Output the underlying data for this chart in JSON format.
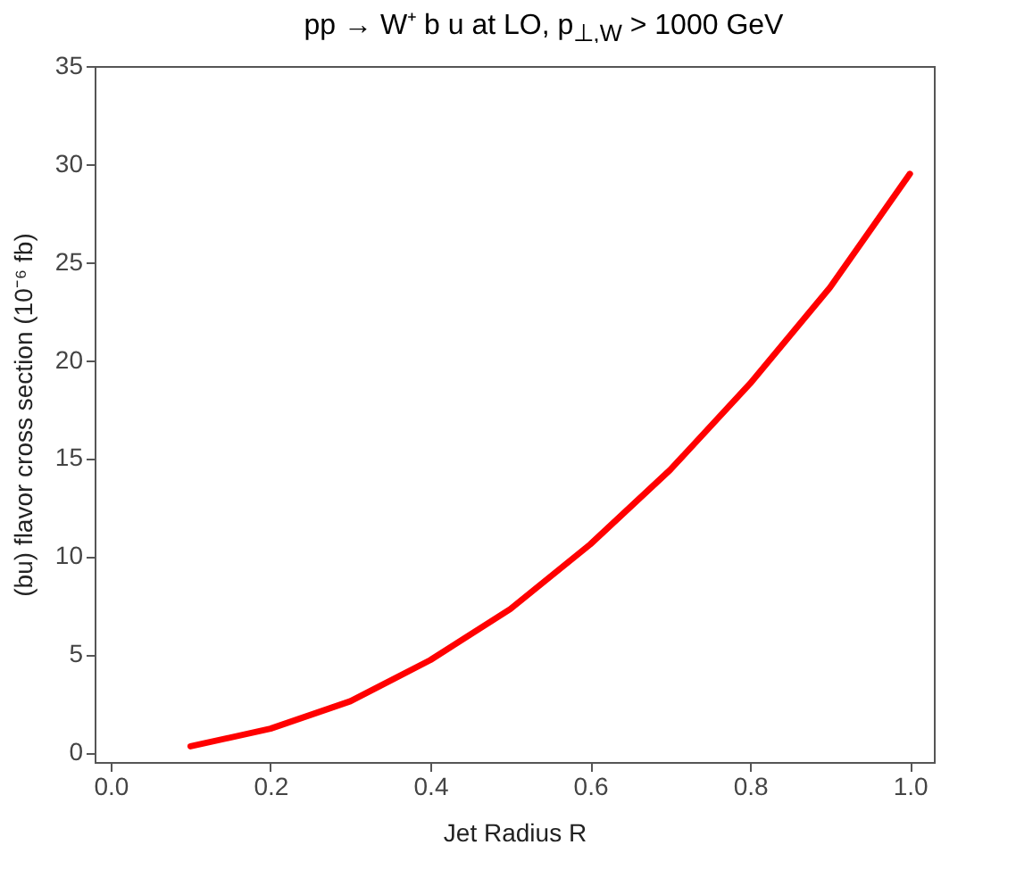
{
  "chart_data": {
    "type": "line",
    "title": "pp → W⁺ b u at LO, p$_{⊥,W}$ > 1000 GeV",
    "xlabel": "Jet Radius R",
    "ylabel": "(bu) flavor cross section (10⁻⁶ fb)",
    "x": [
      0.1,
      0.2,
      0.3,
      0.4,
      0.5,
      0.6,
      0.7,
      0.8,
      0.9,
      1.0
    ],
    "series": [
      {
        "color": "#ff0000",
        "values": [
          0.3,
          1.2,
          2.6,
          4.7,
          7.3,
          10.6,
          14.4,
          18.8,
          23.7,
          29.5
        ]
      }
    ],
    "xlim": [
      -0.02,
      1.03
    ],
    "ylim": [
      -0.5,
      35
    ],
    "xticks": [
      {
        "value": 0,
        "label": "0.0"
      },
      0.2,
      0.4,
      0.6,
      0.8,
      {
        "value": 1,
        "label": "1.0"
      }
    ],
    "yticks": [
      0,
      5,
      10,
      15,
      20,
      25,
      30,
      35
    ],
    "grid": false,
    "legend": false
  }
}
